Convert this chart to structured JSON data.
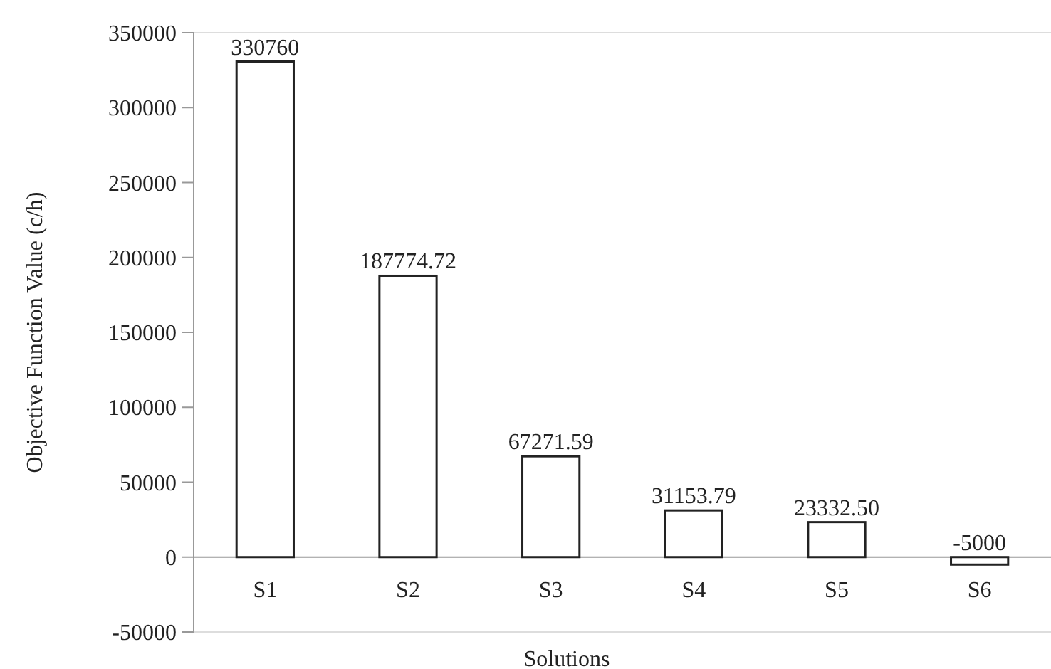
{
  "chart_data": {
    "type": "bar",
    "xlabel": "Solutions",
    "ylabel": "Objective Function Value (c/h)",
    "categories": [
      "S1",
      "S2",
      "S3",
      "S4",
      "S5",
      "S6"
    ],
    "values": [
      330760,
      187774.72,
      67271.59,
      31153.79,
      23332.5,
      -5000
    ],
    "value_labels": [
      "330760",
      "187774.72",
      "67271.59",
      "31153.79",
      "23332.50",
      "-5000"
    ],
    "color": "#ffffff",
    "ylim": [
      -50000,
      350000
    ],
    "yticks": [
      -50000,
      0,
      50000,
      100000,
      150000,
      200000,
      250000,
      300000,
      350000
    ],
    "grid": false
  }
}
